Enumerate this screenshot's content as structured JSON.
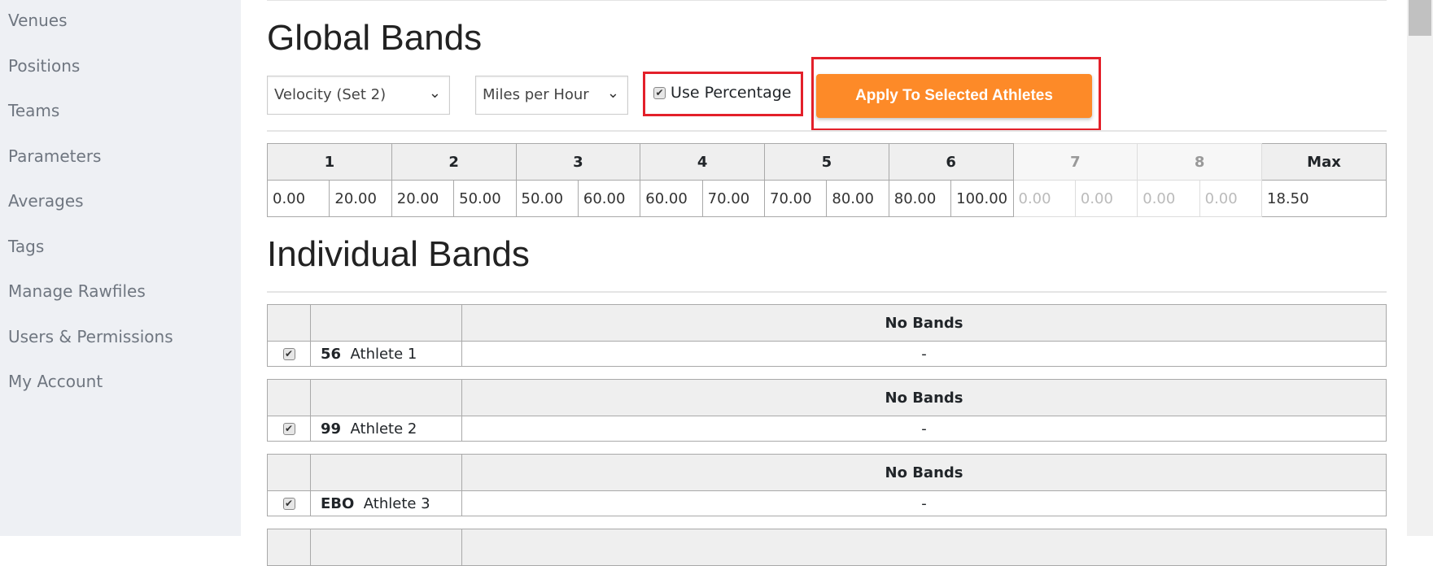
{
  "sidebar": {
    "items": [
      "Venues",
      "Positions",
      "Teams",
      "Parameters",
      "Averages",
      "Tags",
      "Manage Rawfiles",
      "Users & Permissions",
      "My Account"
    ]
  },
  "global": {
    "title": "Global Bands",
    "metric_select": "Velocity (Set 2)",
    "unit_select": "Miles per Hour",
    "use_percentage_label": "Use Percentage",
    "use_percentage_checked": true,
    "apply_label": "Apply To Selected Athletes",
    "headers": [
      "1",
      "2",
      "3",
      "4",
      "5",
      "6",
      "7",
      "8",
      "Max"
    ],
    "values": [
      "0.00",
      "20.00",
      "20.00",
      "50.00",
      "50.00",
      "60.00",
      "60.00",
      "70.00",
      "70.00",
      "80.00",
      "80.00",
      "100.00",
      "0.00",
      "0.00",
      "0.00",
      "0.00"
    ],
    "max": "18.50"
  },
  "individual": {
    "title": "Individual Bands",
    "athletes": [
      {
        "number": "56",
        "name": "Athlete 1",
        "checked": true,
        "header": "No Bands",
        "value": "-"
      },
      {
        "number": "99",
        "name": "Athlete 2",
        "checked": true,
        "header": "No Bands",
        "value": "-"
      },
      {
        "number": "EBO",
        "name": "Athlete 3",
        "checked": true,
        "header": "No Bands",
        "value": "-"
      }
    ]
  },
  "colors": {
    "accent": "#fd8a28",
    "highlight": "#e3202a",
    "sidebar_bg": "#eef0f4"
  }
}
